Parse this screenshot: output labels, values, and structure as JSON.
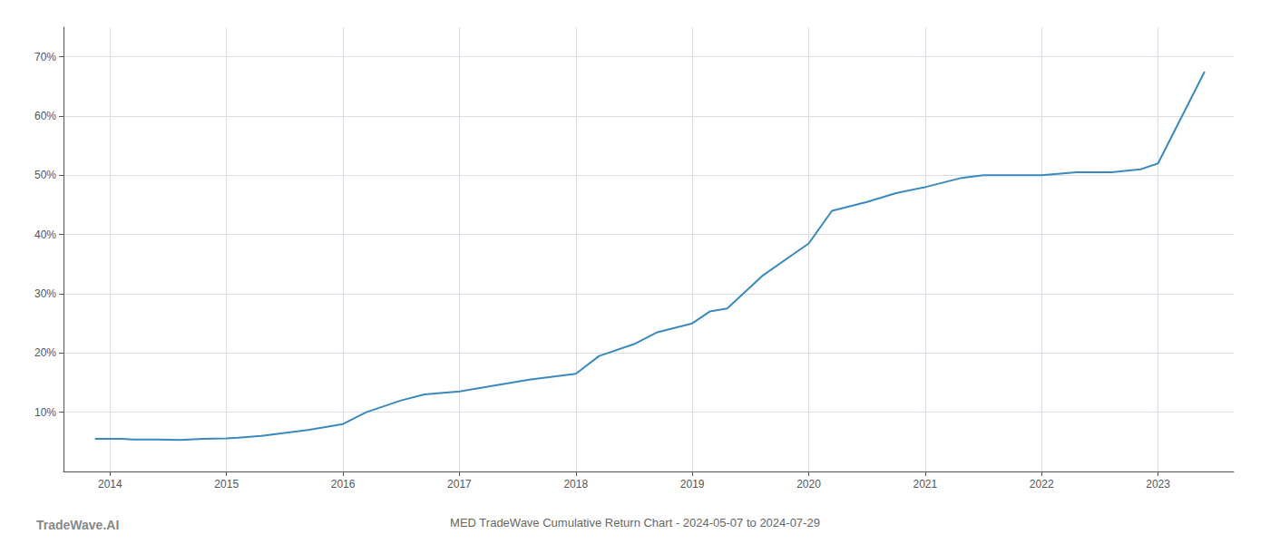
{
  "chart_data": {
    "type": "line",
    "title": "MED TradeWave Cumulative Return Chart - 2024-05-07 to 2024-07-29",
    "annotations": [
      "TradeWave.AI"
    ],
    "x": [
      2013.87,
      2014.0,
      2014.1,
      2014.2,
      2014.4,
      2014.6,
      2014.8,
      2015.0,
      2015.1,
      2015.3,
      2015.5,
      2015.7,
      2015.85,
      2016.0,
      2016.2,
      2016.5,
      2016.7,
      2017.0,
      2017.3,
      2017.6,
      2018.0,
      2018.2,
      2018.5,
      2018.7,
      2019.0,
      2019.15,
      2019.3,
      2019.6,
      2020.0,
      2020.2,
      2020.5,
      2020.75,
      2021.0,
      2021.3,
      2021.5,
      2021.75,
      2022.0,
      2022.3,
      2022.6,
      2022.85,
      2023.0,
      2023.4
    ],
    "values": [
      5.5,
      5.5,
      5.5,
      5.4,
      5.4,
      5.3,
      5.5,
      5.6,
      5.7,
      6.0,
      6.5,
      7.0,
      7.5,
      8.0,
      10.0,
      12.0,
      13.0,
      13.5,
      14.5,
      15.5,
      16.5,
      19.5,
      21.5,
      23.5,
      25.0,
      27.0,
      27.5,
      33.0,
      38.5,
      44.0,
      45.5,
      47.0,
      48.0,
      49.5,
      50.0,
      50.0,
      50.0,
      50.5,
      50.5,
      51.0,
      52.0,
      67.5
    ],
    "color": "#3a8abf",
    "xlim": [
      2013.6,
      2023.65
    ],
    "ylim": [
      0,
      75
    ],
    "xticks": [
      2014,
      2015,
      2016,
      2017,
      2018,
      2019,
      2020,
      2021,
      2022,
      2023
    ],
    "yticks": [
      {
        "value": 10,
        "label": "10%"
      },
      {
        "value": 20,
        "label": "20%"
      },
      {
        "value": 30,
        "label": "30%"
      },
      {
        "value": 40,
        "label": "40%"
      },
      {
        "value": 50,
        "label": "50%"
      },
      {
        "value": 60,
        "label": "60%"
      },
      {
        "value": 70,
        "label": "70%"
      }
    ],
    "grid": true
  }
}
